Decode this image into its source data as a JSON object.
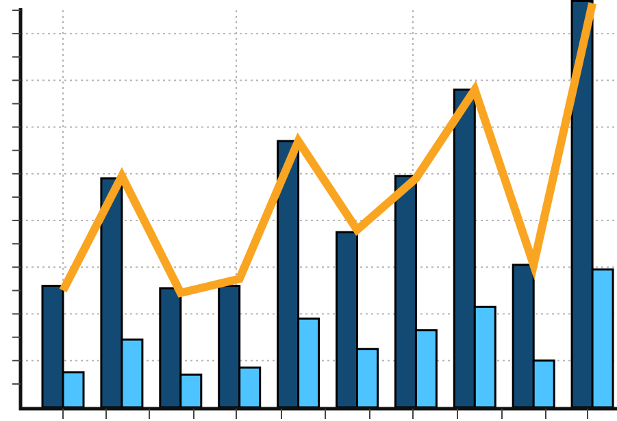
{
  "chart_data": {
    "type": "bar",
    "title": "",
    "xlabel": "",
    "ylabel": "",
    "categories": [
      "",
      "",
      "",
      "",
      "",
      "",
      "",
      "",
      "",
      ""
    ],
    "ylim": [
      0,
      17
    ],
    "grid": true,
    "series": [
      {
        "kind": "bar",
        "values": [
          5.2,
          9.8,
          5.1,
          5.2,
          11.4,
          7.5,
          9.9,
          13.6,
          6.1,
          17.4
        ],
        "color": "#134a74"
      },
      {
        "kind": "bar",
        "values": [
          1.5,
          2.9,
          1.4,
          1.7,
          3.8,
          2.5,
          3.3,
          4.3,
          2.0,
          5.9
        ],
        "color": "#4dc4ff"
      },
      {
        "kind": "line",
        "values": [
          5.0,
          9.9,
          4.9,
          5.5,
          11.4,
          7.6,
          9.8,
          13.6,
          6.1,
          17.3
        ],
        "color": "#f9a521"
      }
    ]
  }
}
